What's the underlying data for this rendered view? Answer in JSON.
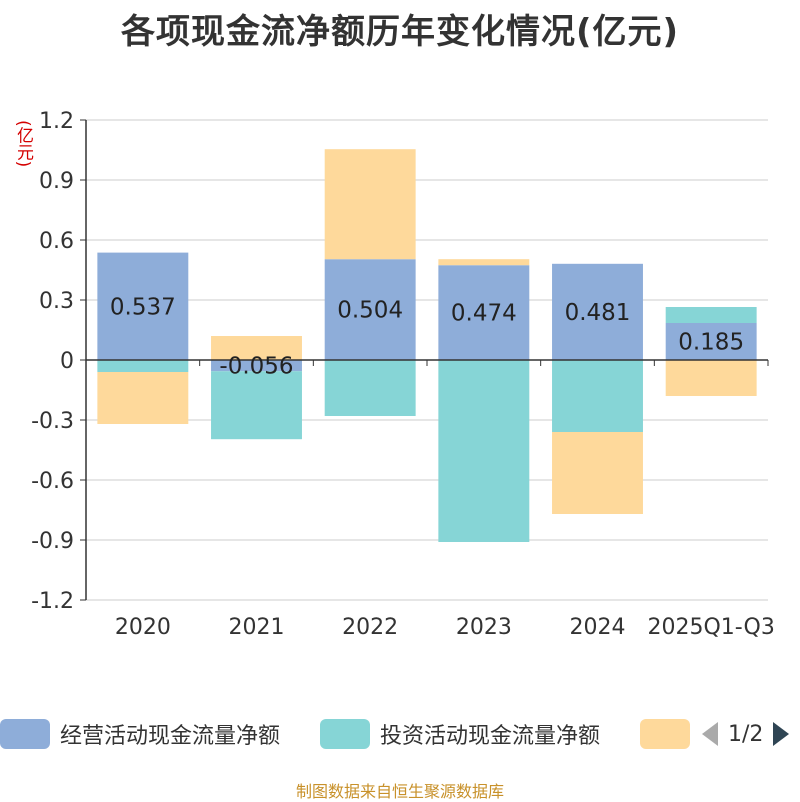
{
  "title": "各项现金流净额历年变化情况(亿元)",
  "unit_label": "(亿元)",
  "footer": "制图数据来自恒生聚源数据库",
  "legend": {
    "items": [
      {
        "label": "经营活动现金流量净额",
        "color": "#8eadd9"
      },
      {
        "label": "投资活动现金流量净额",
        "color": "#86d5d6"
      },
      {
        "label": "",
        "color": "#fed99b"
      }
    ],
    "page": "1/2"
  },
  "colors": {
    "operating": "#8eadd9",
    "investing": "#86d5d6",
    "financing": "#fed99b",
    "axis": "#333333",
    "grid": "#cccccc"
  },
  "chart_data": {
    "type": "bar",
    "stacked": true,
    "title": "各项现金流净额历年变化情况(亿元)",
    "ylabel": "(亿元)",
    "ylim": [
      -1.2,
      1.2
    ],
    "yticks": [
      1.2,
      0.9,
      0.6,
      0.3,
      0,
      -0.3,
      -0.6,
      -0.9,
      -1.2
    ],
    "ytick_labels": [
      "1.2",
      "0.9",
      "0.6",
      "0.3",
      "0",
      "-0.3",
      "-0.6",
      "-0.9",
      "-1.2"
    ],
    "categories": [
      "2020",
      "2021",
      "2022",
      "2023",
      "2024",
      "2025Q1-Q3"
    ],
    "series": [
      {
        "name": "经营活动现金流量净额",
        "values": [
          0.537,
          -0.056,
          0.504,
          0.474,
          0.481,
          0.185
        ],
        "labels": [
          "0.537",
          "-0.056",
          "0.504",
          "0.474",
          "0.481",
          "0.185"
        ]
      },
      {
        "name": "投资活动现金流量净额",
        "values": [
          -0.06,
          -0.34,
          -0.28,
          -0.91,
          -0.36,
          0.08
        ]
      },
      {
        "name": "",
        "values": [
          -0.26,
          0.12,
          0.55,
          0.03,
          -0.41,
          -0.18
        ]
      }
    ]
  }
}
